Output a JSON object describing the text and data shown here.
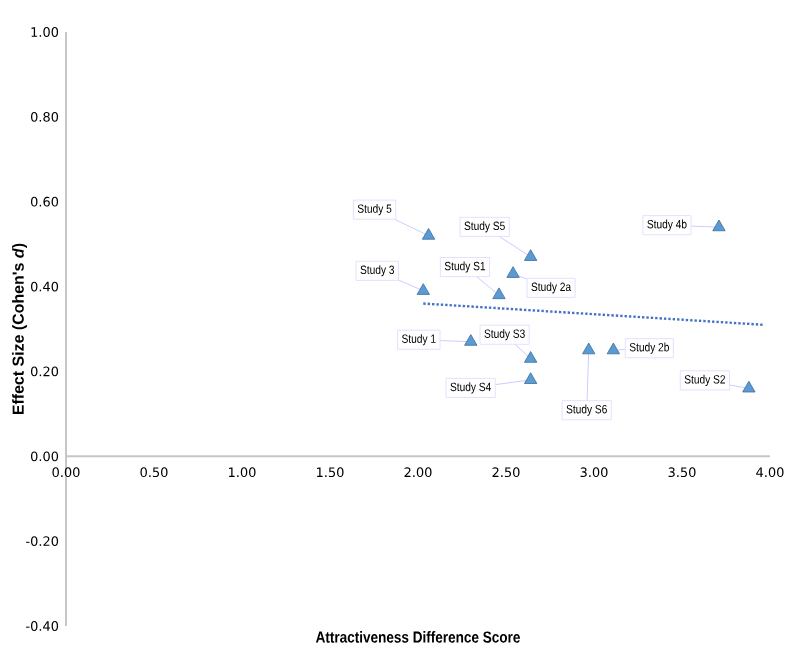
{
  "chart_data": {
    "type": "scatter",
    "xlabel": "Attractiveness Difference Score",
    "ylabel": "Effect Size (Cohen's *d*)",
    "xlim": [
      0,
      4
    ],
    "xticks": [
      {
        "value": 0,
        "label": "0.00"
      },
      {
        "value": 0.5,
        "label": "0.50"
      },
      {
        "value": 1,
        "label": "1.00"
      },
      {
        "value": 1.5,
        "label": "1.50"
      },
      {
        "value": 2,
        "label": "2.00"
      },
      {
        "value": 2.5,
        "label": "2.50"
      },
      {
        "value": 3,
        "label": "3.00"
      },
      {
        "value": 3.5,
        "label": "3.50"
      },
      {
        "value": 4,
        "label": "4.00"
      }
    ],
    "ylim": [
      -0.4,
      1
    ],
    "yticks": [
      {
        "value": -0.4,
        "label": "-0.40"
      },
      {
        "value": -0.2,
        "label": "-0.20"
      },
      {
        "value": 0,
        "label": "0.00"
      },
      {
        "value": 0.2,
        "label": "0.20"
      },
      {
        "value": 0.4,
        "label": "0.40"
      },
      {
        "value": 0.6,
        "label": "0.60"
      },
      {
        "value": 0.8,
        "label": "0.80"
      },
      {
        "value": 1,
        "label": "1.00"
      }
    ],
    "marker": "triangle",
    "series": [
      {
        "color": "#5b9bd5",
        "x": [
          2.06,
          2.64,
          3.71,
          2.46,
          2.03,
          2.54,
          2.3,
          2.64,
          2.64,
          2.97,
          3.11,
          3.88
        ],
        "values": [
          0.52,
          0.47,
          0.54,
          0.38,
          0.39,
          0.43,
          0.27,
          0.23,
          0.18,
          0.25,
          0.25,
          0.16
        ]
      },
      {
        "type": "line",
        "color": "#4472c4",
        "line_style": "dotted",
        "marker": "none",
        "x": [
          2.03,
          3.96
        ],
        "values": [
          0.36,
          0.31
        ]
      }
    ],
    "annotations": [
      {
        "text": "Study 5",
        "x": 2.06,
        "y": 0.52
      },
      {
        "text": "Study S5",
        "x": 2.64,
        "y": 0.47
      },
      {
        "text": "Study 4b",
        "x": 3.71,
        "y": 0.54
      },
      {
        "text": "Study S1",
        "x": 2.46,
        "y": 0.38
      },
      {
        "text": "Study 3",
        "x": 2.03,
        "y": 0.39
      },
      {
        "text": "Study 2a",
        "x": 2.54,
        "y": 0.43
      },
      {
        "text": "Study 1",
        "x": 2.3,
        "y": 0.27
      },
      {
        "text": "Study S3",
        "x": 2.64,
        "y": 0.23
      },
      {
        "text": "Study S4",
        "x": 2.64,
        "y": 0.18
      },
      {
        "text": "Study S6",
        "x": 2.97,
        "y": 0.25
      },
      {
        "text": "Study 2b",
        "x": 3.11,
        "y": 0.25
      },
      {
        "text": "Study S2",
        "x": 3.88,
        "y": 0.16
      }
    ]
  }
}
